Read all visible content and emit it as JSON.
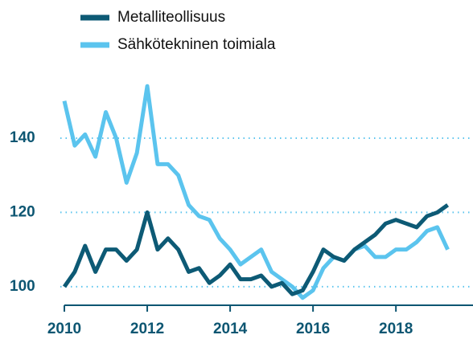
{
  "chart_data": {
    "type": "line",
    "x": [
      2010,
      2010.25,
      2010.5,
      2010.75,
      2011,
      2011.25,
      2011.5,
      2011.75,
      2012,
      2012.25,
      2012.5,
      2012.75,
      2013,
      2013.25,
      2013.5,
      2013.75,
      2014,
      2014.25,
      2014.5,
      2014.75,
      2015,
      2015.25,
      2015.5,
      2015.75,
      2016,
      2016.25,
      2016.5,
      2016.75,
      2017,
      2017.25,
      2017.5,
      2017.75,
      2018,
      2018.25,
      2018.5,
      2018.75,
      2019,
      2019.25
    ],
    "series": [
      {
        "name": "Metalliteollisuus",
        "color": "#0d5a75",
        "values": [
          100,
          104,
          111,
          104,
          110,
          110,
          107,
          110,
          120,
          110,
          113,
          110,
          104,
          105,
          101,
          103,
          106,
          102,
          102,
          103,
          100,
          101,
          98,
          99,
          104,
          110,
          108,
          107,
          110,
          112,
          114,
          117,
          118,
          117,
          116,
          119,
          120,
          122
        ]
      },
      {
        "name": "Sähkötekninen toimiala",
        "color": "#5bc4ee",
        "values": [
          150,
          138,
          141,
          135,
          147,
          140,
          128,
          136,
          154,
          133,
          133,
          130,
          122,
          119,
          118,
          113,
          110,
          106,
          108,
          110,
          104,
          102,
          100,
          97,
          99,
          105,
          108,
          107,
          110,
          111,
          108,
          108,
          110,
          110,
          112,
          115,
          116,
          110
        ]
      }
    ],
    "xlim": [
      2010,
      2019.86
    ],
    "xticks": [
      2010,
      2012,
      2014,
      2016,
      2018
    ],
    "ylim": [
      95,
      160
    ],
    "yticks": [
      100,
      120,
      140
    ],
    "grid": true
  }
}
